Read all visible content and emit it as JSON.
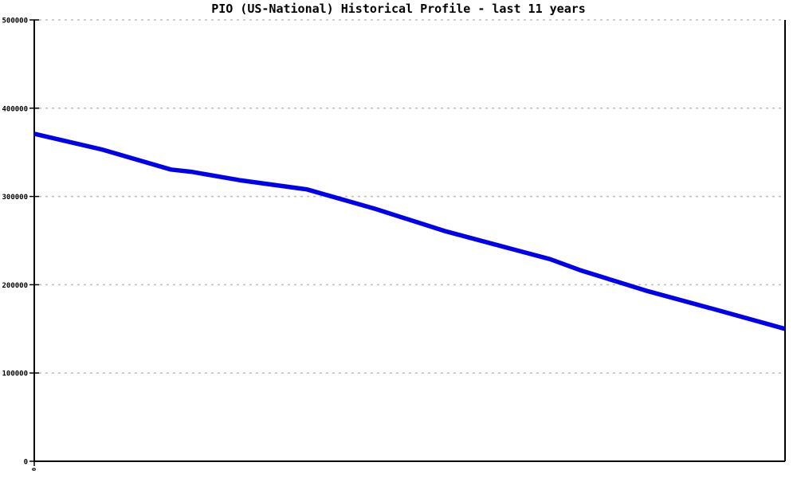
{
  "title": "PIO (US-National) Historical Profile - last 11 years",
  "colors": {
    "background": "#ffffff",
    "title_text": "#000000",
    "axis": "#000000",
    "gridline": "#bbbbbb",
    "line": "#0000ee",
    "tick_label_text": "#000000"
  },
  "chart_data": {
    "type": "line",
    "title": "PIO (US-National) Historical Profile - last 11 years",
    "xlabel": "",
    "ylabel": "",
    "ylim": [
      0,
      500000
    ],
    "grid": "horizontal-dashed",
    "legend": "none",
    "y_ticks": [
      {
        "value": 0,
        "label": "0"
      },
      {
        "value": 100000,
        "label": "100000"
      },
      {
        "value": 200000,
        "label": "200000"
      },
      {
        "value": 300000,
        "label": "300000"
      },
      {
        "value": 400000,
        "label": "400000"
      },
      {
        "value": 500000,
        "label": "500000"
      }
    ],
    "x_ticks": [
      {
        "x_fraction": 0.0,
        "label": "0",
        "rotated": true
      }
    ],
    "series": [
      {
        "name": "PIO (US-National)",
        "color": "#0000ee",
        "points": [
          {
            "x_fraction": 0.0,
            "value": 371000
          },
          {
            "x_fraction": 0.091,
            "value": 353000
          },
          {
            "x_fraction": 0.182,
            "value": 330500
          },
          {
            "x_fraction": 0.209,
            "value": 328000
          },
          {
            "x_fraction": 0.273,
            "value": 318500
          },
          {
            "x_fraction": 0.363,
            "value": 308000
          },
          {
            "x_fraction": 0.454,
            "value": 286000
          },
          {
            "x_fraction": 0.546,
            "value": 261000
          },
          {
            "x_fraction": 0.636,
            "value": 240500
          },
          {
            "x_fraction": 0.687,
            "value": 229000
          },
          {
            "x_fraction": 0.727,
            "value": 216500
          },
          {
            "x_fraction": 0.818,
            "value": 192500
          },
          {
            "x_fraction": 0.909,
            "value": 171500
          },
          {
            "x_fraction": 1.0,
            "value": 150000
          }
        ]
      }
    ]
  }
}
